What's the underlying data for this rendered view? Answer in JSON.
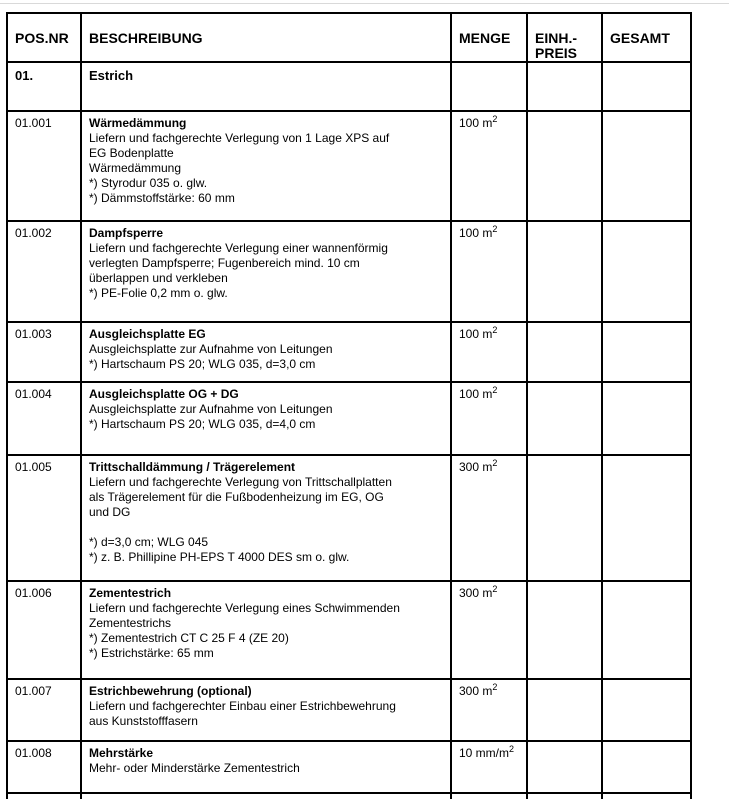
{
  "colors": {
    "border": "#000000",
    "background": "#ffffff",
    "text": "#000000"
  },
  "table": {
    "headers": {
      "pos": "POS.NR",
      "description": "BESCHREIBUNG",
      "quantity": "MENGE",
      "unit_price": "EINH.-\nPREIS",
      "total": "GESAMT"
    },
    "section": {
      "pos": "01.",
      "title": "Estrich"
    },
    "rows": [
      {
        "pos": "01.001",
        "title": "Wärmedämmung",
        "desc": "Liefern und fachgerechte Verlegung von 1 Lage XPS auf\nEG Bodenplatte\nWärmedämmung\n*) Styrodur 035 o. glw.\n*) Dämmstoffstärke: 60 mm",
        "qty": "100 m",
        "qty_sup": "2"
      },
      {
        "pos": "01.002",
        "title": "Dampfsperre",
        "desc": "Liefern und fachgerechte Verlegung einer wannenförmig\nverlegten Dampfsperre; Fugenbereich mind. 10 cm\nüberlappen und verkleben\n*) PE-Folie 0,2 mm o. glw.",
        "qty": "100 m",
        "qty_sup": "2"
      },
      {
        "pos": "01.003",
        "title": "Ausgleichsplatte EG",
        "desc": "Ausgleichsplatte zur Aufnahme von Leitungen\n*) Hartschaum PS 20; WLG 035, d=3,0 cm",
        "qty": "100 m",
        "qty_sup": "2"
      },
      {
        "pos": "01.004",
        "title": "Ausgleichsplatte OG + DG",
        "desc": "Ausgleichsplatte zur Aufnahme von Leitungen\n*) Hartschaum PS 20; WLG 035, d=4,0 cm",
        "qty": "100 m",
        "qty_sup": "2"
      },
      {
        "pos": "01.005",
        "title": "Trittschalldämmung / Trägerelement",
        "desc": "Liefern und fachgerechte Verlegung von Trittschallplatten\nals Trägerelement für die Fußbodenheizung im EG, OG\nund DG\n\n*) d=3,0 cm; WLG 045\n*) z. B. Phillipine PH-EPS T 4000 DES sm o. glw.",
        "qty": "300 m",
        "qty_sup": "2"
      },
      {
        "pos": "01.006",
        "title": "Zementestrich",
        "desc": "Liefern und fachgerechte Verlegung eines Schwimmenden\nZementestrichs\n*) Zementestrich CT C 25 F 4 (ZE 20)\n*) Estrichstärke: 65 mm",
        "qty": "300 m",
        "qty_sup": "2"
      },
      {
        "pos": "01.007",
        "title": "Estrichbewehrung (optional)",
        "desc": "Liefern und fachgerechter Einbau einer Estrichbewehrung\naus Kunststofffasern",
        "qty": "300 m",
        "qty_sup": "2"
      },
      {
        "pos": "01.008",
        "title": "Mehrstärke",
        "desc": "Mehr- oder Minderstärke Zementestrich",
        "qty": "10 mm/m",
        "qty_sup": "2"
      }
    ]
  }
}
